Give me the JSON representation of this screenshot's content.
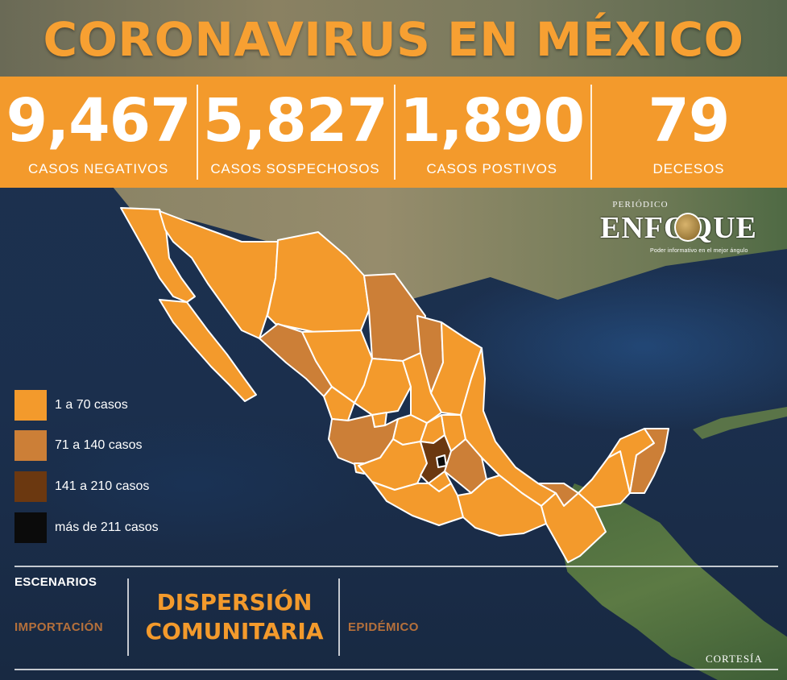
{
  "title": "CORONAVIRUS EN MÉXICO",
  "stats": [
    {
      "value": "9,467",
      "label": "CASOS NEGATIVOS"
    },
    {
      "value": "5,827",
      "label": "CASOS SOSPECHOSOS"
    },
    {
      "value": "1,890",
      "label": "CASOS POSTIVOS"
    },
    {
      "value": "79",
      "label": "DECESOS"
    }
  ],
  "logo": {
    "small": "PERIÓDICO",
    "main": "ENFOQUE",
    "tagline": "Poder informativo en el mejor ángulo"
  },
  "legend": [
    {
      "label": "1 a 70 casos",
      "color": "#f39a2c"
    },
    {
      "label": "71 a 140 casos",
      "color": "#cc7f37"
    },
    {
      "label": "141 a 210 casos",
      "color": "#6b3810"
    },
    {
      "label": "más de 211 casos",
      "color": "#0b0b0b"
    }
  ],
  "colors": {
    "orange": "#f39a2c",
    "ocean": "#1c3150",
    "border": "#ffffff"
  },
  "scenarios": {
    "heading": "ESCENARIOS",
    "importacion": "IMPORTACIÓN",
    "active_line1": "DISPERSIÓN",
    "active_line2": "COMUNITARIA",
    "epidemico": "EPIDÉMICO"
  },
  "credit": "CORTESÍA"
}
